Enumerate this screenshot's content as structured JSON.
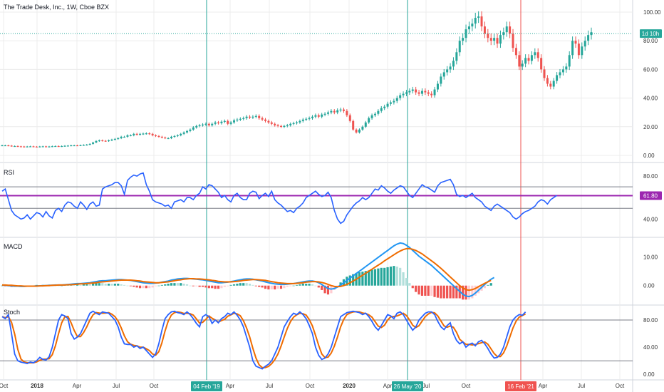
{
  "header": {
    "title": "The Trade Desk, Inc., 1W, Cboe BZX"
  },
  "colors": {
    "up": "#26a69a",
    "down": "#ef5350",
    "rsi": "#2962ff",
    "rsi_band": "#9c27b0",
    "macd": "#2196f3",
    "signal": "#ef6c00",
    "stoch_k": "#2962ff",
    "stoch_d": "#ef6c00",
    "grid": "#ececec",
    "marker_green": "#26a69a",
    "marker_red": "#ef5350"
  },
  "x_axis": {
    "labels": [
      "Oct",
      "2018",
      "Apr",
      "Jul",
      "Oct",
      "Apr",
      "Jul",
      "Oct",
      "2020",
      "Apr",
      "Jul",
      "Oct",
      "Apr",
      "Jul",
      "Oct"
    ],
    "markers": [
      {
        "label": "04 Feb '19",
        "color": "green"
      },
      {
        "label": "26 May '20",
        "color": "green"
      },
      {
        "label": "16 Feb '21",
        "color": "red"
      }
    ]
  },
  "chart_data": [
    {
      "type": "candlestick",
      "title": "The Trade Desk, Inc., 1W, Cboe BZX",
      "y_ticks": [
        "100.00",
        "80.00",
        "60.00",
        "40.00",
        "20.00",
        "0.00"
      ],
      "ylim": [
        0,
        100
      ],
      "last_price_tag": "1d 10h",
      "last_price": 85,
      "grid": true,
      "closes": [
        7,
        7,
        6.8,
        6.5,
        6.5,
        6.3,
        6.2,
        6.0,
        6.2,
        6.3,
        6.1,
        6.0,
        6.2,
        6.3,
        6.0,
        6.2,
        6.4,
        6.5,
        6.3,
        6.5,
        6.7,
        6.8,
        7,
        7,
        6.9,
        7.1,
        7.3,
        7.5,
        8,
        9,
        10,
        10.5,
        10.2,
        10,
        10.5,
        11,
        11.5,
        12,
        13,
        13,
        14,
        14,
        15,
        14.5,
        15,
        15.2,
        15.4,
        15,
        14,
        13.5,
        13,
        12.5,
        12,
        12,
        13,
        13.5,
        14,
        15,
        16,
        17,
        18,
        19.5,
        20.5,
        21,
        21.5,
        22,
        21,
        22,
        23,
        22.5,
        23.5,
        24,
        22,
        23,
        24.5,
        25,
        25.5,
        26,
        27,
        26.5,
        27,
        27.5,
        26,
        25,
        24,
        23,
        22,
        21,
        20.5,
        20,
        20.5,
        21,
        22,
        22.5,
        23,
        24,
        25,
        25.5,
        26,
        27,
        28,
        27,
        28.5,
        29,
        30,
        31,
        30,
        31.5,
        32,
        31,
        28,
        24,
        18,
        16,
        18,
        20,
        23,
        26,
        28,
        29,
        31,
        33,
        34,
        36,
        37,
        38,
        40,
        42,
        43,
        44,
        45,
        46,
        44,
        43,
        45,
        44,
        43,
        42,
        46,
        50,
        55,
        58,
        60,
        62,
        66,
        72,
        80,
        82,
        88,
        90,
        92,
        96,
        97,
        90,
        85,
        82,
        80,
        82,
        78,
        84,
        86,
        90,
        85,
        75,
        70,
        62,
        64,
        68,
        66,
        70,
        72,
        68,
        60,
        54,
        50,
        48,
        52,
        56,
        58,
        60,
        62,
        70,
        80,
        78,
        70,
        76,
        80,
        84,
        86
      ]
    },
    {
      "type": "line",
      "title": "RSI",
      "y_ticks": [
        "80.00",
        "40.00"
      ],
      "ylim": [
        25,
        90
      ],
      "band_value": "61.80",
      "band_level": 61.8,
      "upper_level": 70,
      "lower_level": 50,
      "values": [
        66,
        68,
        58,
        48,
        44,
        42,
        40,
        41,
        44,
        40,
        43,
        46,
        45,
        42,
        47,
        43,
        41,
        48,
        50,
        47,
        53,
        56,
        55,
        52,
        50,
        56,
        53,
        49,
        54,
        56,
        52,
        53,
        68,
        70,
        71,
        72,
        74,
        74,
        71,
        63,
        76,
        79,
        81,
        80,
        82,
        83,
        72,
        66,
        58,
        56,
        55,
        54,
        52,
        53,
        50,
        56,
        57,
        58,
        56,
        60,
        60,
        58,
        62,
        64,
        70,
        68,
        72,
        71,
        68,
        65,
        60,
        62,
        58,
        56,
        62,
        64,
        60,
        58,
        58,
        64,
        66,
        65,
        59,
        62,
        64,
        61,
        66,
        58,
        55,
        53,
        50,
        47,
        48,
        46,
        50,
        52,
        55,
        60,
        62,
        64,
        66,
        63,
        61,
        62,
        65,
        60,
        48,
        40,
        36,
        38,
        44,
        48,
        52,
        55,
        57,
        60,
        58,
        60,
        64,
        68,
        67,
        71,
        69,
        66,
        64,
        67,
        69,
        71,
        70,
        66,
        62,
        60,
        64,
        68,
        72,
        70,
        69,
        67,
        65,
        71,
        74,
        75,
        76,
        77,
        72,
        63,
        61,
        62,
        60,
        62,
        64,
        60,
        58,
        56,
        52,
        50,
        48,
        52,
        54,
        52,
        50,
        48,
        46,
        42,
        40,
        42,
        45,
        47,
        48,
        50,
        52,
        56,
        58,
        57,
        54,
        58,
        60,
        62
      ]
    },
    {
      "type": "line",
      "title": "MACD",
      "y_ticks": [
        "10.00",
        "0.00"
      ],
      "ylim": [
        -6,
        16
      ],
      "macd": [
        0.2,
        0.1,
        0.0,
        -0.1,
        -0.2,
        -0.2,
        -0.3,
        -0.3,
        -0.2,
        -0.2,
        -0.2,
        -0.1,
        -0.1,
        0.0,
        0.0,
        0.1,
        0.1,
        0.2,
        0.2,
        0.2,
        0.3,
        0.4,
        0.5,
        0.6,
        0.7,
        0.7,
        0.8,
        0.9,
        1.0,
        1.2,
        1.4,
        1.6,
        1.7,
        1.7,
        1.8,
        1.9,
        2.0,
        2.1,
        2.1,
        2.0,
        1.9,
        1.8,
        1.6,
        1.4,
        1.2,
        1.0,
        0.9,
        0.8,
        0.8,
        0.9,
        1.0,
        1.2,
        1.4,
        1.6,
        1.9,
        2.1,
        2.3,
        2.4,
        2.5,
        2.5,
        2.4,
        2.3,
        2.2,
        2.1,
        2.0,
        1.8,
        1.6,
        1.4,
        1.2,
        1.0,
        1.0,
        1.1,
        1.2,
        1.4,
        1.6,
        1.8,
        2.0,
        2.2,
        2.3,
        2.3,
        2.2,
        2.0,
        1.8,
        1.6,
        1.3,
        1.0,
        0.8,
        0.6,
        0.5,
        0.4,
        0.4,
        0.5,
        0.6,
        0.7,
        0.9,
        1.1,
        1.3,
        1.5,
        1.6,
        1.6,
        1.4,
        1.0,
        0.4,
        -0.4,
        -1.0,
        -1.2,
        -1.0,
        -0.5,
        0.2,
        1.0,
        1.8,
        2.6,
        3.4,
        4.2,
        5.0,
        5.8,
        6.6,
        7.4,
        8.2,
        9.0,
        9.8,
        10.6,
        11.4,
        12.2,
        13.0,
        13.8,
        14.4,
        14.8,
        14.6,
        14.0,
        13.2,
        12.2,
        11.2,
        10.2,
        9.4,
        8.6,
        7.8,
        7.0,
        6.0,
        5.0,
        4.0,
        3.0,
        2.0,
        1.0,
        0.0,
        -1.0,
        -2.0,
        -3.0,
        -3.6,
        -3.8,
        -3.4,
        -2.6,
        -1.6,
        -0.6,
        0.4,
        1.4,
        2.2,
        2.8
      ],
      "signal": [
        0.2,
        0.2,
        0.1,
        0.1,
        0.0,
        -0.1,
        -0.1,
        -0.2,
        -0.2,
        -0.2,
        -0.2,
        -0.2,
        -0.1,
        -0.1,
        0.0,
        0.0,
        0.1,
        0.1,
        0.2,
        0.2,
        0.2,
        0.3,
        0.3,
        0.4,
        0.5,
        0.6,
        0.6,
        0.7,
        0.8,
        0.9,
        1.0,
        1.2,
        1.3,
        1.4,
        1.5,
        1.6,
        1.7,
        1.8,
        1.9,
        1.9,
        1.9,
        1.9,
        1.8,
        1.7,
        1.6,
        1.4,
        1.3,
        1.2,
        1.1,
        1.0,
        1.0,
        1.1,
        1.2,
        1.3,
        1.5,
        1.7,
        1.9,
        2.0,
        2.2,
        2.3,
        2.4,
        2.4,
        2.3,
        2.3,
        2.2,
        2.1,
        2.0,
        1.8,
        1.7,
        1.5,
        1.4,
        1.3,
        1.3,
        1.3,
        1.4,
        1.5,
        1.6,
        1.8,
        1.9,
        2.0,
        2.1,
        2.1,
        2.0,
        1.9,
        1.8,
        1.6,
        1.4,
        1.2,
        1.0,
        0.9,
        0.8,
        0.7,
        0.7,
        0.7,
        0.8,
        0.9,
        1.0,
        1.2,
        1.3,
        1.4,
        1.4,
        1.3,
        1.1,
        0.8,
        0.4,
        0.0,
        -0.3,
        -0.4,
        -0.3,
        0.0,
        0.4,
        1.0,
        1.6,
        2.2,
        2.9,
        3.6,
        4.3,
        5.0,
        5.7,
        6.4,
        7.1,
        7.8,
        8.6,
        9.3,
        10.0,
        10.7,
        11.4,
        12.0,
        12.5,
        12.8,
        12.8,
        12.6,
        12.2,
        11.6,
        11.0,
        10.2,
        9.4,
        8.6,
        7.8,
        6.9,
        6.0,
        5.0,
        4.0,
        3.0,
        2.0,
        1.0,
        0.0,
        -0.8,
        -1.4,
        -1.6,
        -1.4,
        -1.0,
        -0.4,
        0.2,
        0.8,
        1.3,
        1.8
      ]
    },
    {
      "type": "line",
      "title": "Stoch",
      "y_ticks": [
        "80.00",
        "40.00",
        "0.00"
      ],
      "ylim": [
        -5,
        100
      ],
      "upper_level": 80,
      "lower_level": 20,
      "k": [
        85,
        82,
        88,
        60,
        30,
        20,
        18,
        17,
        16,
        18,
        17,
        20,
        25,
        22,
        21,
        26,
        40,
        60,
        80,
        88,
        86,
        82,
        60,
        52,
        55,
        60,
        70,
        80,
        90,
        93,
        90,
        88,
        92,
        91,
        90,
        85,
        80,
        70,
        55,
        45,
        44,
        44,
        40,
        42,
        38,
        40,
        35,
        30,
        25,
        30,
        45,
        65,
        82,
        88,
        92,
        93,
        91,
        90,
        88,
        92,
        88,
        82,
        75,
        70,
        85,
        88,
        85,
        75,
        80,
        76,
        82,
        85,
        90,
        88,
        92,
        87,
        80,
        70,
        55,
        40,
        20,
        12,
        10,
        8,
        12,
        15,
        20,
        30,
        40,
        55,
        70,
        78,
        85,
        90,
        88,
        92,
        88,
        82,
        72,
        60,
        40,
        28,
        22,
        24,
        30,
        40,
        55,
        70,
        85,
        88,
        91,
        92,
        93,
        92,
        91,
        88,
        90,
        85,
        78,
        70,
        65,
        72,
        80,
        88,
        86,
        82,
        90,
        92,
        88,
        80,
        72,
        65,
        70,
        80,
        85,
        90,
        92,
        92,
        88,
        78,
        70,
        66,
        72,
        76,
        60,
        50,
        45,
        48,
        40,
        44,
        46,
        42,
        48,
        50,
        45,
        38,
        30,
        24,
        25,
        30,
        40,
        55,
        70,
        80,
        85,
        88,
        87,
        92
      ]
    }
  ]
}
